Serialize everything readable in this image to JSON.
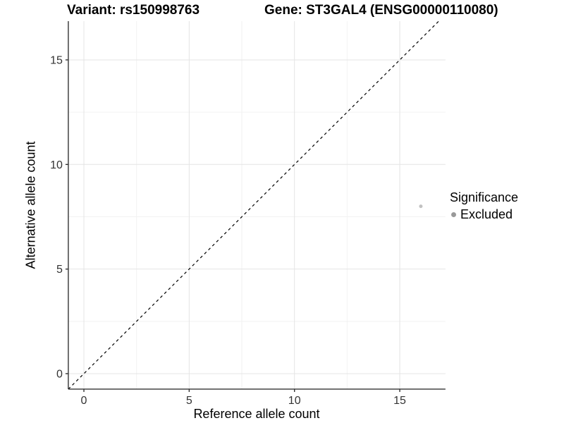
{
  "header": {
    "title_left": "Variant: rs150998763",
    "title_right": "Gene: ST3GAL4 (ENSG00000110080)"
  },
  "chart_data": {
    "type": "scatter",
    "xlabel": "Reference allele count",
    "ylabel": "Alternative allele count",
    "x_ticks": [
      0,
      5,
      10,
      15
    ],
    "y_ticks": [
      0,
      5,
      10,
      15
    ],
    "x_minor": [
      2.5,
      7.5,
      12.5
    ],
    "y_minor": [
      2.5,
      7.5,
      12.5
    ],
    "xlim": [
      -0.74,
      17.17
    ],
    "ylim": [
      -0.74,
      16.85
    ],
    "grid": true,
    "points": [
      {
        "x": 16,
        "y": 8,
        "series": "Excluded",
        "color": "#c2c2c2",
        "radius": 2.5
      }
    ],
    "reference_line": {
      "slope": 1,
      "intercept": 0,
      "style": "dashed",
      "color": "#000000"
    },
    "legend": {
      "position": "right",
      "title": "Significance",
      "items": [
        {
          "label": "Excluded",
          "color": "#999999"
        }
      ]
    },
    "style": {
      "axis_color": "#333333",
      "grid_major_color": "#e4e4e4",
      "grid_minor_color": "#f2f2f2",
      "tick_label_color": "#333333"
    }
  }
}
